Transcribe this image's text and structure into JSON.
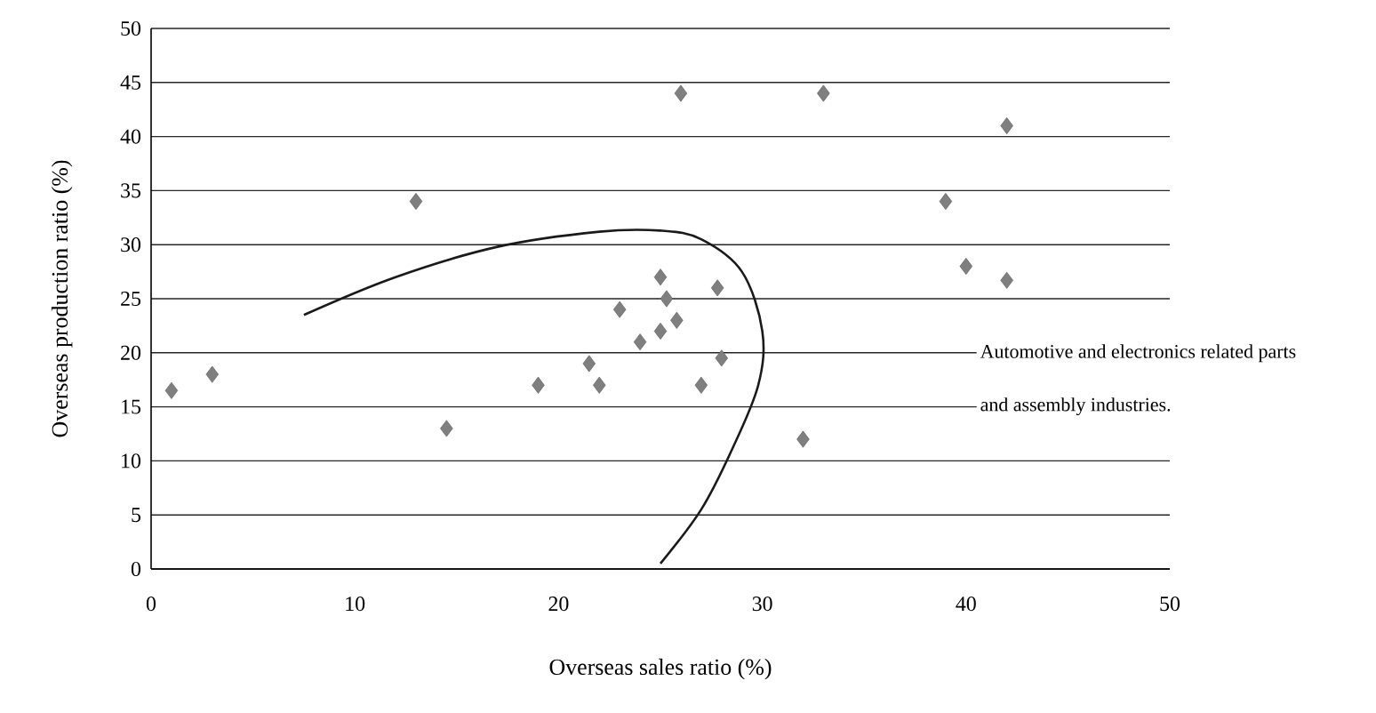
{
  "chart_data": {
    "type": "scatter",
    "xlabel": "Overseas sales ratio (%)",
    "ylabel": "Overseas production ratio (%)",
    "xlim": [
      0,
      50
    ],
    "ylim": [
      0,
      50
    ],
    "xticks": [
      0,
      10,
      20,
      30,
      40,
      50
    ],
    "yticks": [
      0,
      5,
      10,
      15,
      20,
      25,
      30,
      35,
      40,
      45,
      50
    ],
    "grid": "y",
    "marker": "diamond",
    "series": [
      {
        "color": "#7f7f7f",
        "x": [
          1,
          3,
          13,
          14.5,
          19,
          21.5,
          22,
          23,
          24,
          25,
          25.3,
          25,
          25.8,
          26,
          27,
          27.8,
          28,
          32,
          33,
          39,
          40,
          42,
          42
        ],
        "values": [
          16.5,
          18,
          34,
          13,
          17,
          19,
          17,
          24,
          21,
          27,
          25,
          22,
          23,
          44,
          17,
          26,
          19.5,
          12,
          44,
          34,
          28,
          41,
          26.7
        ]
      },
      {
        "type": "line",
        "color": "#1a1a1a",
        "marker": "none",
        "line_style": "solid",
        "x": [
          7.5,
          12,
          17,
          22,
          25,
          27,
          29,
          30,
          29.8,
          28.5,
          27,
          25
        ],
        "values": [
          23.5,
          27,
          29.8,
          31.2,
          31.3,
          30.5,
          27.5,
          22,
          17,
          11,
          5.5,
          0.5
        ]
      }
    ],
    "annotations": [
      "Automotive and electronics related parts and assembly industries."
    ]
  }
}
